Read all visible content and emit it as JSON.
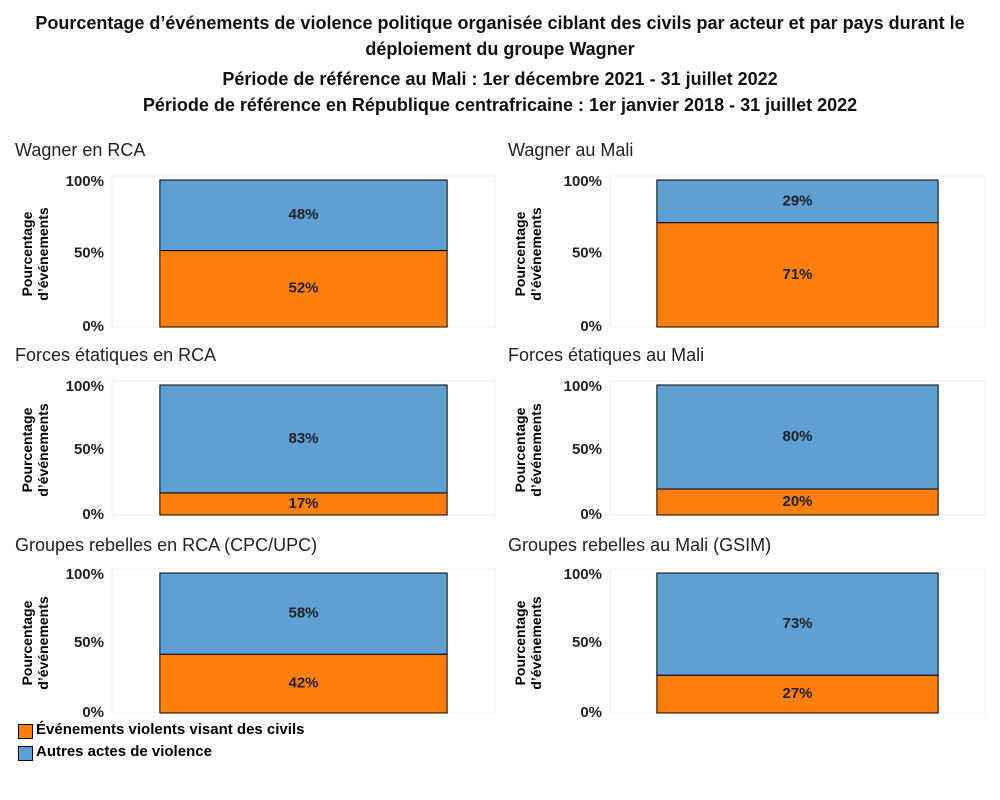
{
  "title": "Pourcentage d’événements de violence politique organisée ciblant des civils par acteur et par pays durant le déploiement du groupe Wagner",
  "subtitle": [
    "Période de référence au Mali : 1er décembre 2021 - 31 juillet 2022",
    "Période de référence en République centrafricaine : 1er janvier 2018 - 31 juillet 2022"
  ],
  "chart_data": [
    {
      "type": "bar",
      "stacked": true,
      "title": "Wagner en RCA",
      "ylabel": "Pourcentage d’événements",
      "categories": [
        null
      ],
      "series": [
        {
          "name": "Événements violents visant des civils",
          "color": "#ff7f0e",
          "values": [
            52
          ],
          "value_labels": [
            "52%"
          ]
        },
        {
          "name": "Autres actes de violence",
          "color": "#5f9fd3",
          "values": [
            48
          ],
          "value_labels": [
            "48%"
          ]
        }
      ],
      "ylim": [
        0,
        100
      ],
      "yticks": [
        {
          "value": 0,
          "label": "0%"
        },
        {
          "value": 50,
          "label": "50%"
        },
        {
          "value": 100,
          "label": "100%"
        }
      ],
      "grid": false
    },
    {
      "type": "bar",
      "stacked": true,
      "title": "Wagner au Mali",
      "ylabel": "Pourcentage d’événements",
      "categories": [
        null
      ],
      "series": [
        {
          "name": "Événements violents visant des civils",
          "color": "#ff7f0e",
          "values": [
            71
          ],
          "value_labels": [
            "71%"
          ]
        },
        {
          "name": "Autres actes de violence",
          "color": "#5f9fd3",
          "values": [
            29
          ],
          "value_labels": [
            "29%"
          ]
        }
      ],
      "ylim": [
        0,
        100
      ],
      "yticks": [
        {
          "value": 0,
          "label": "0%"
        },
        {
          "value": 50,
          "label": "50%"
        },
        {
          "value": 100,
          "label": "100%"
        }
      ],
      "grid": false
    },
    {
      "type": "bar",
      "stacked": true,
      "title": "Forces étatiques en RCA",
      "ylabel": "Pourcentage d’événements",
      "categories": [
        null
      ],
      "series": [
        {
          "name": "Événements violents visant des civils",
          "color": "#ff7f0e",
          "values": [
            17
          ],
          "value_labels": [
            "17%"
          ]
        },
        {
          "name": "Autres actes de violence",
          "color": "#5f9fd3",
          "values": [
            83
          ],
          "value_labels": [
            "83%"
          ]
        }
      ],
      "ylim": [
        0,
        100
      ],
      "yticks": [
        {
          "value": 0,
          "label": "0%"
        },
        {
          "value": 50,
          "label": "50%"
        },
        {
          "value": 100,
          "label": "100%"
        }
      ],
      "grid": false
    },
    {
      "type": "bar",
      "stacked": true,
      "title": "Forces étatiques au Mali",
      "ylabel": "Pourcentage d’événements",
      "categories": [
        null
      ],
      "series": [
        {
          "name": "Événements violents visant des civils",
          "color": "#ff7f0e",
          "values": [
            20
          ],
          "value_labels": [
            "20%"
          ]
        },
        {
          "name": "Autres actes de violence",
          "color": "#5f9fd3",
          "values": [
            80
          ],
          "value_labels": [
            "80%"
          ]
        }
      ],
      "ylim": [
        0,
        100
      ],
      "yticks": [
        {
          "value": 0,
          "label": "0%"
        },
        {
          "value": 50,
          "label": "50%"
        },
        {
          "value": 100,
          "label": "100%"
        }
      ],
      "grid": false
    },
    {
      "type": "bar",
      "stacked": true,
      "title": "Groupes rebelles en RCA (CPC/UPC)",
      "ylabel": "Pourcentage d’événements",
      "categories": [
        null
      ],
      "series": [
        {
          "name": "Événements violents visant des civils",
          "color": "#ff7f0e",
          "values": [
            42
          ],
          "value_labels": [
            "42%"
          ]
        },
        {
          "name": "Autres actes de violence",
          "color": "#5f9fd3",
          "values": [
            58
          ],
          "value_labels": [
            "58%"
          ]
        }
      ],
      "ylim": [
        0,
        100
      ],
      "yticks": [
        {
          "value": 0,
          "label": "0%"
        },
        {
          "value": 50,
          "label": "50%"
        },
        {
          "value": 100,
          "label": "100%"
        }
      ],
      "grid": false
    },
    {
      "type": "bar",
      "stacked": true,
      "title": "Groupes rebelles au Mali (GSIM)",
      "ylabel": "Pourcentage d’événements",
      "categories": [
        null
      ],
      "series": [
        {
          "name": "Événements violents visant des civils",
          "color": "#ff7f0e",
          "values": [
            27
          ],
          "value_labels": [
            "27%"
          ]
        },
        {
          "name": "Autres actes de violence",
          "color": "#5f9fd3",
          "values": [
            73
          ],
          "value_labels": [
            "73%"
          ]
        }
      ],
      "ylim": [
        0,
        100
      ],
      "yticks": [
        {
          "value": 0,
          "label": "0%"
        },
        {
          "value": 50,
          "label": "50%"
        },
        {
          "value": 100,
          "label": "100%"
        }
      ],
      "grid": false
    }
  ]
}
